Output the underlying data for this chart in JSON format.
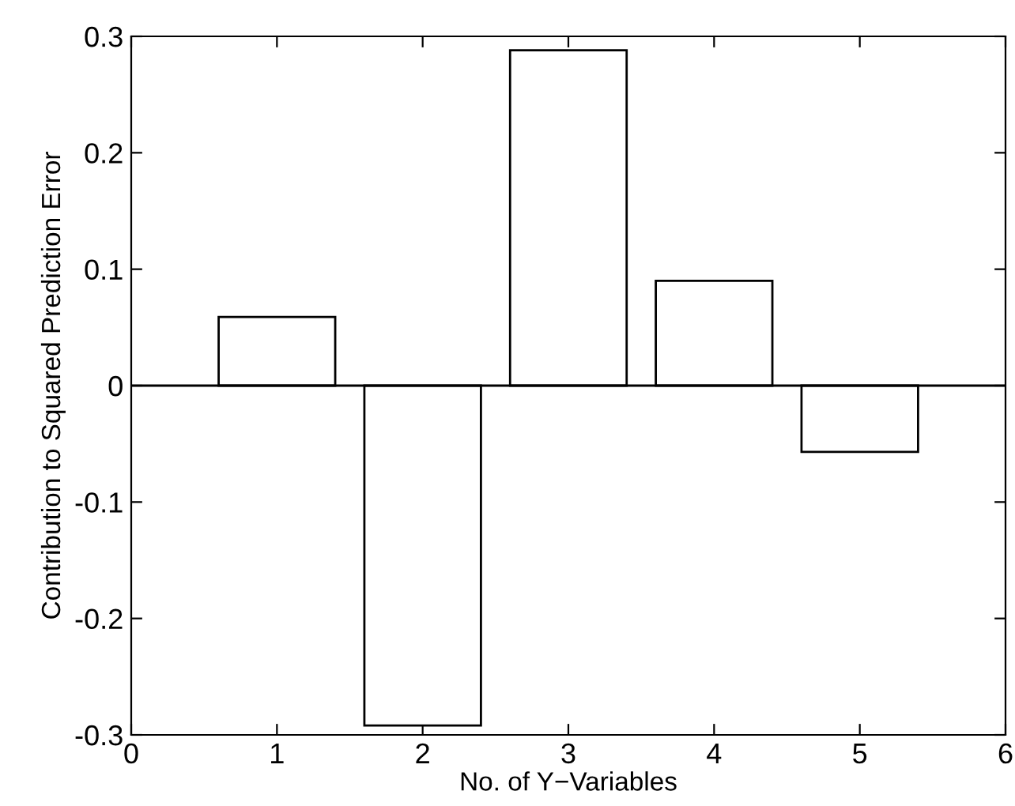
{
  "chart_data": {
    "type": "bar",
    "xlabel": "No. of Y−Variables",
    "ylabel": "Contribution to Squared Prediction Error",
    "x": [
      1,
      2,
      3,
      4,
      5
    ],
    "values": [
      0.059,
      -0.292,
      0.288,
      0.09,
      -0.057
    ],
    "color": "#ffffff",
    "xlim": [
      0,
      6
    ],
    "xticks": [
      0,
      1,
      2,
      3,
      4,
      5,
      6
    ],
    "ylim": [
      -0.3,
      0.3
    ],
    "yticks": [
      -0.3,
      -0.2,
      -0.1,
      0,
      0.1,
      0.2,
      0.3
    ],
    "ref_lines": [
      {
        "axis": "y",
        "value": 0,
        "color": "#000000"
      }
    ],
    "grid": false,
    "legend": false
  }
}
